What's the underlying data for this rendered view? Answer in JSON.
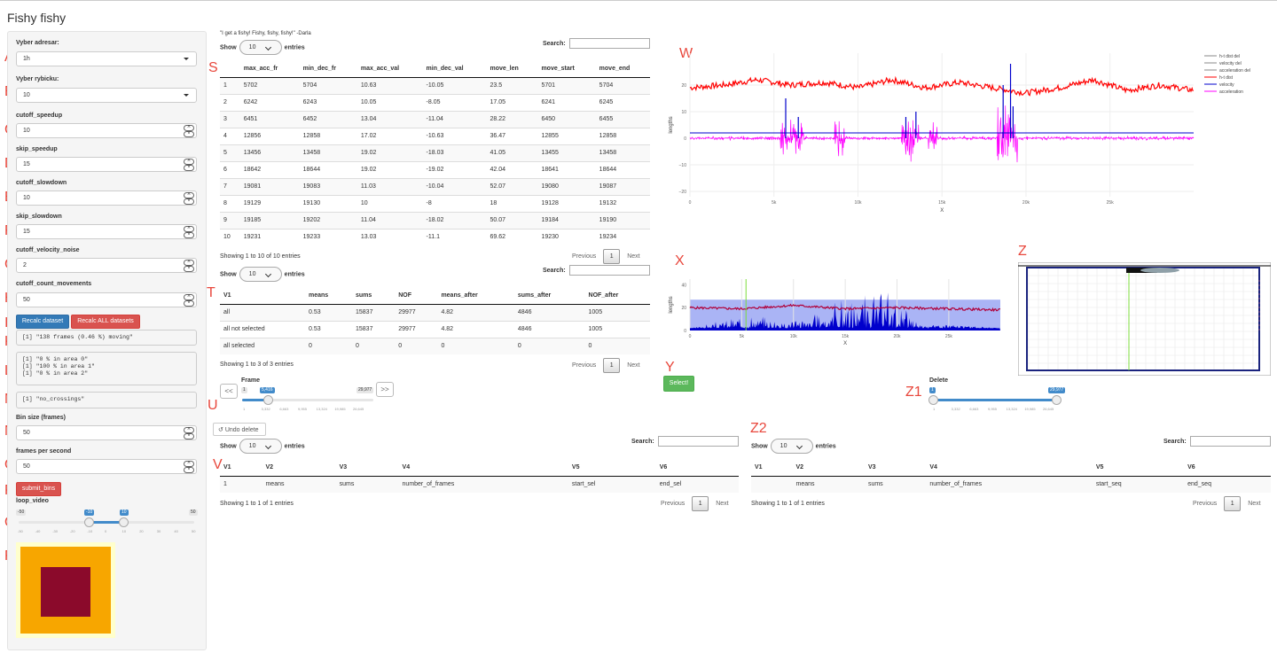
{
  "app_title": "Fishy fishy",
  "markers": [
    "A",
    "B",
    "C",
    "D",
    "E",
    "F",
    "G",
    "H",
    "I",
    "J",
    "K",
    "L",
    "M",
    "N",
    "O",
    "P",
    "Q",
    "R",
    "S",
    "T",
    "U",
    "V",
    "W",
    "X",
    "Y",
    "Z",
    "Z1",
    "Z2"
  ],
  "sidebar": {
    "address_label": "Vyber adresar:",
    "address_value": "1h",
    "fish_label": "Vyber rybicku:",
    "fish_value": "10",
    "cutoff_speedup_label": "cutoff_speedup",
    "cutoff_speedup_value": "10",
    "skip_speedup_label": "skip_speedup",
    "skip_speedup_value": "15",
    "cutoff_slowdown_label": "cutoff_slowdown",
    "cutoff_slowdown_value": "10",
    "skip_slowdown_label": "skip_slowdown",
    "skip_slowdown_value": "15",
    "cutoff_velocity_noise_label": "cutoff_velocity_noise",
    "cutoff_velocity_noise_value": "2",
    "cutoff_count_movements_label": "cutoff_count_movements",
    "cutoff_count_movements_value": "50",
    "recalc_button": "Recalc dataset",
    "recalc_all_button": "Recalc ALL datasets",
    "out_moving": "[1] \"138 frames (0.46 %) moving\"",
    "out_areas": "[1] \"0 % in area 0\"\n[1] \"100 % in area 1\"\n[1] \"0 % in area 2\"",
    "out_crossings": "[1] \"no_crossings\"",
    "bin_size_label": "Bin size (frames)",
    "bin_size_value": "50",
    "fps_label": "frames per second",
    "fps_value": "50",
    "submit_bins_button": "submit_bins",
    "loop_video_label": "loop_video",
    "loop_min": "-50",
    "loop_max": "50",
    "loop_from": "-10",
    "loop_to": "10",
    "loop_ticks": [
      "-50",
      "-40",
      "-30",
      "-20",
      "-10",
      "0",
      "10",
      "20",
      "30",
      "40",
      "50"
    ],
    "video_colors": {
      "outer": "#f7a600",
      "inner": "#8b0a2b",
      "frame": "#ffffcc"
    }
  },
  "table_s": {
    "show": "Show",
    "length": "10",
    "entries": "entries",
    "search": "Search:",
    "columns": [
      "",
      "max_acc_fr",
      "min_dec_fr",
      "max_acc_val",
      "min_dec_val",
      "move_len",
      "move_start",
      "move_end"
    ],
    "rows": [
      [
        "1",
        "5702",
        "5704",
        "10.63",
        "-10.05",
        "23.5",
        "5701",
        "5704"
      ],
      [
        "2",
        "6242",
        "6243",
        "10.05",
        "-8.05",
        "17.05",
        "6241",
        "6245"
      ],
      [
        "3",
        "6451",
        "6452",
        "13.04",
        "-11.04",
        "28.22",
        "6450",
        "6455"
      ],
      [
        "4",
        "12856",
        "12858",
        "17.02",
        "-10.63",
        "36.47",
        "12855",
        "12858"
      ],
      [
        "5",
        "13456",
        "13458",
        "19.02",
        "-18.03",
        "41.05",
        "13455",
        "13458"
      ],
      [
        "6",
        "18642",
        "18644",
        "19.02",
        "-19.02",
        "42.04",
        "18641",
        "18644"
      ],
      [
        "7",
        "19081",
        "19083",
        "11.03",
        "-10.04",
        "52.07",
        "19080",
        "19087"
      ],
      [
        "8",
        "19129",
        "19130",
        "10",
        "-8",
        "18",
        "19128",
        "19132"
      ],
      [
        "9",
        "19185",
        "19202",
        "11.04",
        "-18.02",
        "50.07",
        "19184",
        "19190"
      ],
      [
        "10",
        "19231",
        "19233",
        "13.03",
        "-11.1",
        "69.62",
        "19230",
        "19234"
      ]
    ],
    "info": "Showing 1 to 10 of 10 entries",
    "prev": "Previous",
    "page": "1",
    "next": "Next"
  },
  "table_t": {
    "show": "Show",
    "length": "10",
    "entries": "entries",
    "search": "Search:",
    "columns": [
      "V1",
      "means",
      "sums",
      "NOF",
      "means_after",
      "sums_after",
      "NOF_after"
    ],
    "rows": [
      [
        "all",
        "0.53",
        "15837",
        "29977",
        "4.82",
        "4846",
        "1005"
      ],
      [
        "all not selected",
        "0.53",
        "15837",
        "29977",
        "4.82",
        "4846",
        "1005"
      ],
      [
        "all selected",
        "0",
        "0",
        "0",
        "0",
        "0",
        "0"
      ]
    ],
    "info": "Showing 1 to 3 of 3 entries",
    "prev": "Previous",
    "page": "1",
    "next": "Next"
  },
  "frame_slider": {
    "label": "Frame",
    "prev_button": "<<",
    "next_button": ">>",
    "min": "1",
    "max": "29,977",
    "value": "5,416",
    "ticks": [
      "1",
      "3,332",
      "6,663",
      "9,955",
      "13,324",
      "19,985",
      "26,645"
    ]
  },
  "undo_delete": "Undo delete",
  "table_v": {
    "show": "Show",
    "length": "10",
    "entries": "entries",
    "search": "Search:",
    "columns": [
      "V1",
      "V2",
      "V3",
      "V4",
      "V5",
      "V6"
    ],
    "rows": [
      [
        "1",
        "means",
        "sums",
        "number_of_frames",
        "start_sel",
        "end_sel"
      ]
    ],
    "info": "Showing 1 to 1 of 1 entries",
    "prev": "Previous",
    "page": "1",
    "next": "Next"
  },
  "table_z2": {
    "show": "Show",
    "length": "10",
    "entries": "entries",
    "search": "Search:",
    "columns": [
      "V1",
      "V2",
      "V3",
      "V4",
      "V5",
      "V6"
    ],
    "rows": [
      [
        "",
        "means",
        "sums",
        "number_of_frames",
        "start_seq",
        "end_seq"
      ]
    ],
    "info": "Showing 1 to 1 of 1 entries",
    "prev": "Previous",
    "page": "1",
    "next": "Next"
  },
  "chart_w": {
    "ylabel": "lengths",
    "xlabel": "X",
    "yticks": [
      "20",
      "10",
      "0",
      "−10",
      "−20"
    ],
    "xticks": [
      "0",
      "5k",
      "10k",
      "15k",
      "20k",
      "25k"
    ],
    "legend": [
      {
        "name": "h-t dist del",
        "color": "#888888"
      },
      {
        "name": "velocity del",
        "color": "#888888"
      },
      {
        "name": "acceleration del",
        "color": "#888888"
      },
      {
        "name": "h-t dist",
        "color": "#ff0000"
      },
      {
        "name": "velocity",
        "color": "#0000cc"
      },
      {
        "name": "acceleration",
        "color": "#ff00ff"
      }
    ]
  },
  "chart_x": {
    "ylabel": "lengths",
    "xlabel": "X",
    "yticks": [
      "40",
      "20",
      "0"
    ],
    "xticks": [
      "0",
      "5k",
      "10k",
      "15k",
      "20k",
      "25k"
    ]
  },
  "select_button": "Select!",
  "delete_slider": {
    "label": "Delete",
    "min": "1",
    "max": "29,977",
    "ticks": [
      "1",
      "3,332",
      "6,663",
      "9,955",
      "13,324",
      "19,985",
      "26,645"
    ]
  },
  "chart_data": [
    {
      "type": "line",
      "title": "",
      "xlabel": "X",
      "ylabel": "lengths",
      "xlim": [
        0,
        29977
      ],
      "ylim": [
        -22,
        32
      ],
      "series": [
        {
          "name": "h-t dist",
          "color": "#ff0000",
          "x": [
            0,
            2000,
            4000,
            6000,
            8000,
            10000,
            12000,
            14000,
            16000,
            18000,
            20000,
            22000,
            24000,
            26000,
            28000,
            29977
          ],
          "y": [
            19,
            20,
            22,
            20,
            21,
            19,
            22,
            19,
            21,
            19,
            17,
            19,
            22,
            18,
            20,
            18
          ]
        },
        {
          "name": "velocity",
          "color": "#0000cc",
          "x": [
            0,
            5700,
            6450,
            12850,
            13450,
            18640,
            19080,
            19230,
            29977
          ],
          "y": [
            0,
            15,
            8,
            8,
            10,
            20,
            28,
            12,
            0
          ]
        },
        {
          "name": "acceleration",
          "color": "#ff00ff",
          "x": [
            0,
            5700,
            6450,
            12850,
            13450,
            18640,
            19080,
            19230,
            29977
          ],
          "y": [
            0,
            -10,
            -11,
            -10,
            -18,
            -19,
            -10,
            -11,
            0
          ]
        }
      ]
    },
    {
      "type": "area",
      "title": "",
      "xlabel": "X",
      "ylabel": "lengths",
      "xlim": [
        0,
        29977
      ],
      "ylim": [
        0,
        45
      ],
      "series": [
        {
          "name": "h-t dist",
          "color": "#b0003a",
          "x": [
            0,
            5000,
            10000,
            15000,
            20000,
            25000,
            29977
          ],
          "y": [
            20,
            19,
            22,
            19,
            20,
            19,
            18
          ]
        },
        {
          "name": "velocity",
          "color": "#0000cc",
          "x": [
            0,
            5700,
            9000,
            12850,
            13450,
            18640,
            19200,
            22000,
            29977
          ],
          "y": [
            0,
            10,
            6,
            13,
            19,
            26,
            30,
            5,
            0
          ]
        }
      ]
    }
  ]
}
